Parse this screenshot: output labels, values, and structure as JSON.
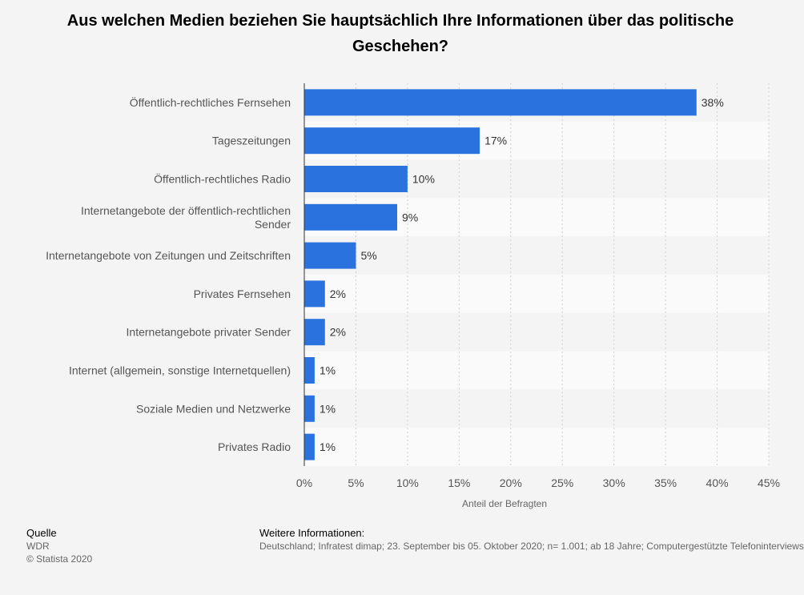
{
  "chart_data": {
    "type": "bar",
    "orientation": "horizontal",
    "title": "Aus welchen Medien beziehen Sie hauptsächlich Ihre Informationen über das politische Geschehen?",
    "categories": [
      "Öffentlich-rechtliches Fernsehen",
      "Tageszeitungen",
      "Öffentlich-rechtliches Radio",
      "Internetangebote der öffentlich-rechtlichen Sender",
      "Internetangebote von Zeitungen und Zeitschriften",
      "Privates Fernsehen",
      "Internetangebote privater Sender",
      "Internet (allgemein, sonstige Internetquellen)",
      "Soziale Medien und Netzwerke",
      "Privates Radio"
    ],
    "category_label_lines": [
      [
        "Öffentlich-rechtliches Fernsehen"
      ],
      [
        "Tageszeitungen"
      ],
      [
        "Öffentlich-rechtliches Radio"
      ],
      [
        "Internetangebote der öffentlich-rechtlichen",
        "Sender"
      ],
      [
        "Internetangebote von Zeitungen und Zeitschriften"
      ],
      [
        "Privates Fernsehen"
      ],
      [
        "Internetangebote privater Sender"
      ],
      [
        "Internet (allgemein, sonstige Internetquellen)"
      ],
      [
        "Soziale Medien und Netzwerke"
      ],
      [
        "Privates Radio"
      ]
    ],
    "values": [
      38,
      17,
      10,
      9,
      5,
      2,
      2,
      1,
      1,
      1
    ],
    "value_labels": [
      "38%",
      "17%",
      "10%",
      "9%",
      "5%",
      "2%",
      "2%",
      "1%",
      "1%",
      "1%"
    ],
    "xlabel": "Anteil der Befragten",
    "xlim": [
      0,
      45
    ],
    "ticks": [
      0,
      5,
      10,
      15,
      20,
      25,
      30,
      35,
      40,
      45
    ],
    "tick_labels": [
      "0%",
      "5%",
      "10%",
      "15%",
      "20%",
      "25%",
      "30%",
      "35%",
      "40%",
      "45%"
    ],
    "grid": true,
    "bar_color": "#2a73de"
  },
  "source": {
    "heading": "Quelle",
    "name": "WDR",
    "copyright": "© Statista 2020"
  },
  "info": {
    "heading": "Weitere Informationen:",
    "text": "Deutschland; Infratest dimap; 23. September bis 05. Oktober 2020; n= 1.001; ab 18 Jahre; Computergestützte Telefoninterviews"
  }
}
